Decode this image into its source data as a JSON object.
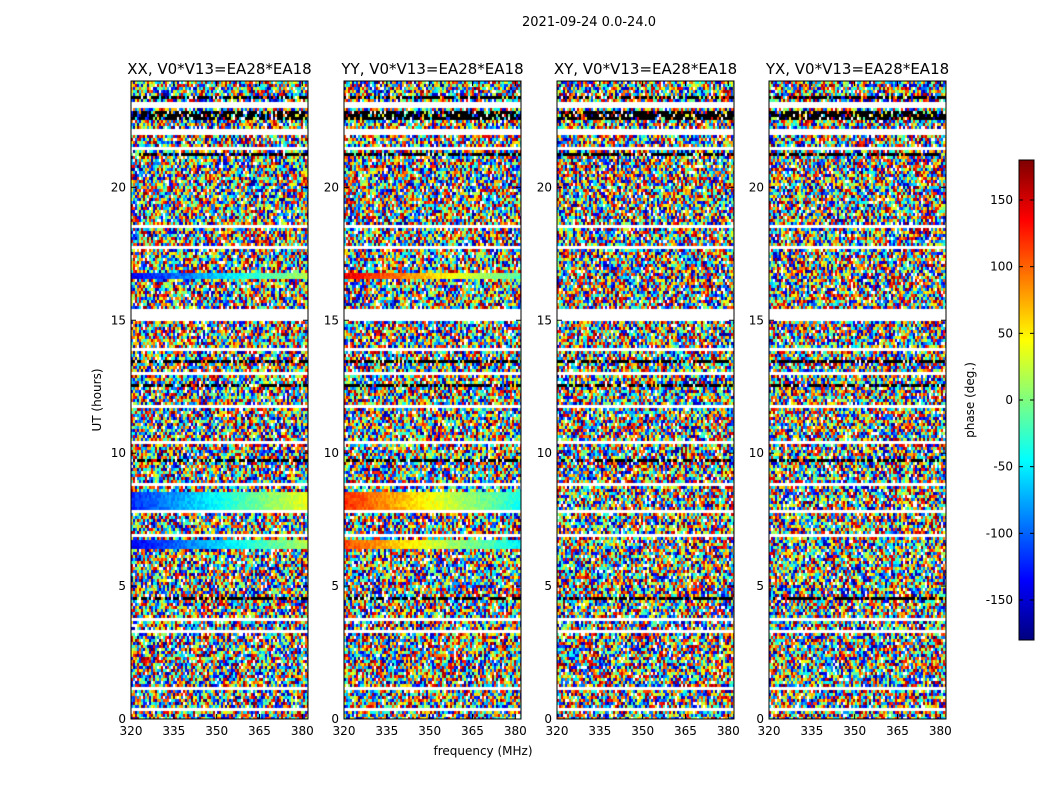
{
  "figure": {
    "suptitle": "2021-09-24 0.0-24.0"
  },
  "chart_data": {
    "type": "heatmap",
    "xlabel": "frequency (MHz)",
    "ylabel": "UT (hours)",
    "xlim": [
      320,
      382
    ],
    "ylim": [
      0,
      24
    ],
    "xticks": [
      320,
      335,
      350,
      365,
      380
    ],
    "yticks": [
      0,
      5,
      10,
      15,
      20
    ],
    "panels": [
      {
        "title": "XX, V0*V13=EA28*EA18",
        "pol": "XX"
      },
      {
        "title": "YY, V0*V13=EA28*EA18",
        "pol": "YY"
      },
      {
        "title": "XY, V0*V13=EA28*EA18",
        "pol": "XY"
      },
      {
        "title": "YX, V0*V13=EA28*EA18",
        "pol": "YX"
      }
    ],
    "colorbar": {
      "label": "phase (deg.)",
      "range": [
        -180,
        180
      ],
      "ticks": [
        -150,
        -100,
        -50,
        0,
        50,
        100,
        150
      ],
      "colormap": "jet",
      "colors": [
        "#00007f",
        "#0000ff",
        "#007fff",
        "#00ffff",
        "#7fff7f",
        "#ffff00",
        "#ff7f00",
        "#ff0000",
        "#7f0000"
      ]
    },
    "flagged_bands_hours": [
      [
        23.0,
        23.25
      ],
      [
        22.0,
        22.3
      ],
      [
        21.5,
        21.6
      ],
      [
        18.5,
        18.6
      ],
      [
        17.7,
        17.8
      ],
      [
        15.3,
        15.45
      ],
      [
        15.05,
        15.2
      ],
      [
        13.9,
        14.0
      ],
      [
        13.0,
        13.1
      ],
      [
        11.8,
        11.9
      ],
      [
        10.35,
        10.5
      ],
      [
        8.8,
        8.9
      ],
      [
        7.85,
        7.95
      ],
      [
        6.9,
        7.0
      ],
      [
        3.7,
        3.8
      ],
      [
        3.3,
        3.4
      ],
      [
        1.2,
        1.3
      ],
      [
        0.4,
        0.5
      ]
    ],
    "dark_bands_hours": [
      [
        23.4,
        23.5
      ],
      [
        22.6,
        22.9
      ],
      [
        21.2,
        21.3
      ],
      [
        13.5,
        13.6
      ],
      [
        12.6,
        12.7
      ],
      [
        9.7,
        9.85
      ],
      [
        4.5,
        4.65
      ]
    ],
    "coherent_bands": [
      {
        "pols": [
          "XX"
        ],
        "range": [
          16.6,
          16.8
        ],
        "phase": -140
      },
      {
        "pols": [
          "YY"
        ],
        "range": [
          16.6,
          16.8
        ],
        "phase": 140
      },
      {
        "pols": [
          "XX"
        ],
        "range": [
          7.9,
          8.6
        ],
        "phase": -120
      },
      {
        "pols": [
          "YY"
        ],
        "range": [
          7.9,
          8.6
        ],
        "phase": 120
      },
      {
        "pols": [
          "XX"
        ],
        "range": [
          6.5,
          6.8
        ],
        "phase": -140
      },
      {
        "pols": [
          "YY"
        ],
        "range": [
          6.5,
          6.8
        ],
        "phase": 110
      }
    ]
  }
}
